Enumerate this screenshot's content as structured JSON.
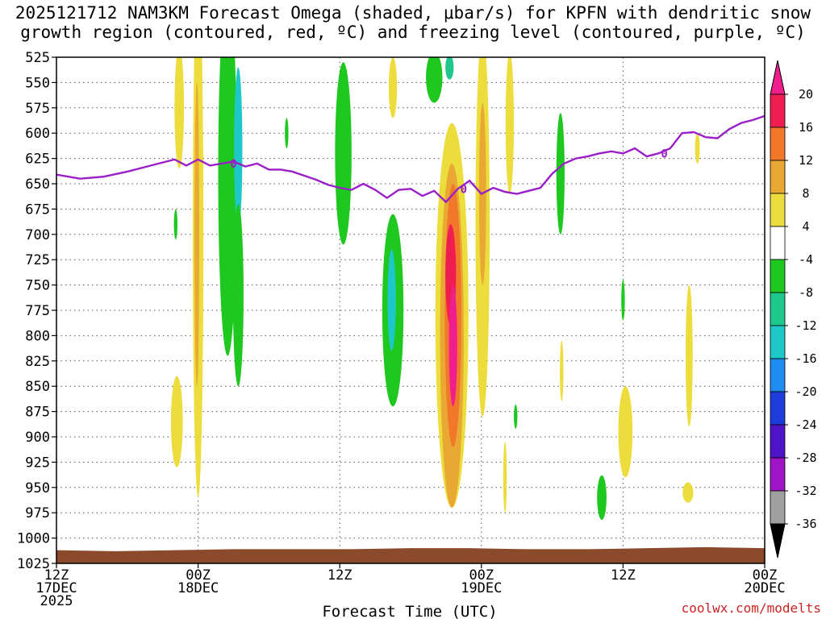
{
  "chart_data": {
    "type": "heatmap",
    "title_line1": "2025121712 NAM3KM Forecast Omega (shaded, μbar/s) for KPFN with dendritic snow",
    "title_line2": "growth region (contoured, red, ºC) and freezing level (contoured, purple, ºC)",
    "xlabel": "Forecast Time (UTC)",
    "credit": "coolwx.com/modelts",
    "x_range_hours": [
      0,
      60
    ],
    "y_range_mb": [
      1025,
      525
    ],
    "x_ticks": [
      {
        "hour": 0,
        "line1": "12Z",
        "line2": "17DEC",
        "line3": "2025"
      },
      {
        "hour": 12,
        "line1": "00Z",
        "line2": "18DEC",
        "line3": ""
      },
      {
        "hour": 24,
        "line1": "12Z",
        "line2": "",
        "line3": ""
      },
      {
        "hour": 36,
        "line1": "00Z",
        "line2": "19DEC",
        "line3": ""
      },
      {
        "hour": 48,
        "line1": "12Z",
        "line2": "",
        "line3": ""
      },
      {
        "hour": 60,
        "line1": "00Z",
        "line2": "20DEC",
        "line3": ""
      }
    ],
    "y_ticks": [
      "525",
      "550",
      "575",
      "600",
      "625",
      "650",
      "675",
      "700",
      "725",
      "750",
      "775",
      "800",
      "825",
      "850",
      "875",
      "900",
      "925",
      "950",
      "975",
      "1000",
      "1025"
    ],
    "colorbar": {
      "labels": [
        "20",
        "16",
        "12",
        "8",
        "4",
        "-4",
        "-8",
        "-12",
        "-16",
        "-20",
        "-24",
        "-28",
        "-32",
        "-36"
      ],
      "bands": [
        {
          "from": 16,
          "to": 20,
          "color": "#f01e50"
        },
        {
          "from": 12,
          "to": 16,
          "color": "#f07828"
        },
        {
          "from": 8,
          "to": 12,
          "color": "#e8a832"
        },
        {
          "from": 4,
          "to": 8,
          "color": "#ecdc3c"
        },
        {
          "from": -4,
          "to": 4,
          "color": "#ffffff"
        },
        {
          "from": -8,
          "to": -4,
          "color": "#1ec81e"
        },
        {
          "from": -12,
          "to": -8,
          "color": "#1ec88c"
        },
        {
          "from": -16,
          "to": -12,
          "color": "#1ec8c8"
        },
        {
          "from": -20,
          "to": -16,
          "color": "#1e8cf0"
        },
        {
          "from": -24,
          "to": -20,
          "color": "#1e3cdc"
        },
        {
          "from": -28,
          "to": -24,
          "color": "#5014c8"
        },
        {
          "from": -32,
          "to": -28,
          "color": "#a014c8"
        },
        {
          "from": -36,
          "to": -32,
          "color": "#a0a0a0"
        }
      ],
      "top_arrow_color": "#f01e8c",
      "bottom_arrow_color": "#000000"
    },
    "omega_areas": [
      {
        "name": "omega-area-18dec-00z-upper",
        "color": "#ecdc3c",
        "hour": 10.4,
        "mb": 575,
        "hwid": 0.4,
        "dmb": 60
      },
      {
        "name": "omega-area-18dec-00z-column",
        "color": "#ecdc3c",
        "hour": 12.0,
        "mb": 700,
        "hwid": 0.45,
        "dmb": 260
      },
      {
        "name": "omega-area-18dec-00z-column-core",
        "color": "#e8a832",
        "hour": 11.9,
        "mb": 700,
        "hwid": 0.2,
        "dmb": 150
      },
      {
        "name": "omega-area-18dec-lowlevel",
        "color": "#ecdc3c",
        "hour": 10.2,
        "mb": 885,
        "hwid": 0.5,
        "dmb": 45
      },
      {
        "name": "omega-area-18dec-03z-sink",
        "color": "#1ec81e",
        "hour": 14.5,
        "mb": 640,
        "hwid": 0.8,
        "dmb": 180
      },
      {
        "name": "omega-area-18dec-03z-sink-core",
        "color": "#1ec8c8",
        "hour": 15.4,
        "mb": 615,
        "hwid": 0.35,
        "dmb": 80
      },
      {
        "name": "omega-area-18dec-04z-sink-low",
        "color": "#1ec81e",
        "hour": 15.4,
        "mb": 760,
        "hwid": 0.45,
        "dmb": 90
      },
      {
        "name": "omega-area-18dec-small",
        "color": "#1ec81e",
        "hour": 10.1,
        "mb": 690,
        "hwid": 0.15,
        "dmb": 15
      },
      {
        "name": "omega-area-18dec-07z",
        "color": "#1ec81e",
        "hour": 19.5,
        "mb": 600,
        "hwid": 0.15,
        "dmb": 15
      },
      {
        "name": "omega-area-18dec-12z-sink",
        "color": "#1ec81e",
        "hour": 24.3,
        "mb": 620,
        "hwid": 0.7,
        "dmb": 90
      },
      {
        "name": "omega-area-18dec-14z-upper",
        "color": "#ecdc3c",
        "hour": 28.5,
        "mb": 555,
        "hwid": 0.35,
        "dmb": 30
      },
      {
        "name": "omega-area-18dec-16z-upper",
        "color": "#1ec81e",
        "hour": 32.0,
        "mb": 545,
        "hwid": 0.7,
        "dmb": 25
      },
      {
        "name": "omega-area-18dec-17z-upper-core",
        "color": "#1ec88c",
        "hour": 33.3,
        "mb": 535,
        "hwid": 0.35,
        "dmb": 12
      },
      {
        "name": "omega-area-18dec-15z-sink",
        "color": "#1ec81e",
        "hour": 28.5,
        "mb": 775,
        "hwid": 0.9,
        "dmb": 95
      },
      {
        "name": "omega-area-18dec-15z-sink-core",
        "color": "#1ec8c8",
        "hour": 28.4,
        "mb": 765,
        "hwid": 0.35,
        "dmb": 50
      },
      {
        "name": "omega-area-18dec-21z-ascent",
        "color": "#ecdc3c",
        "hour": 33.5,
        "mb": 780,
        "hwid": 1.4,
        "dmb": 190
      },
      {
        "name": "omega-area-18dec-21z-ascent-mid",
        "color": "#e8a832",
        "hour": 33.5,
        "mb": 800,
        "hwid": 1.0,
        "dmb": 170
      },
      {
        "name": "omega-area-18dec-21z-ascent-core",
        "color": "#f07828",
        "hour": 33.6,
        "mb": 780,
        "hwid": 0.7,
        "dmb": 130
      },
      {
        "name": "omega-area-18dec-21z-ascent-max",
        "color": "#f01e50",
        "hour": 33.4,
        "mb": 740,
        "hwid": 0.45,
        "dmb": 50
      },
      {
        "name": "omega-area-18dec-21z-ascent-max-low",
        "color": "#f01e8c",
        "hour": 33.6,
        "mb": 810,
        "hwid": 0.35,
        "dmb": 60
      },
      {
        "name": "omega-area-19dec-00z-column",
        "color": "#ecdc3c",
        "hour": 36.1,
        "mb": 690,
        "hwid": 0.6,
        "dmb": 190
      },
      {
        "name": "omega-area-19dec-00z-column-core",
        "color": "#e8a832",
        "hour": 36.1,
        "mb": 660,
        "hwid": 0.3,
        "dmb": 90
      },
      {
        "name": "omega-area-19dec-00z-upper",
        "color": "#ecdc3c",
        "hour": 38.4,
        "mb": 590,
        "hwid": 0.35,
        "dmb": 70
      },
      {
        "name": "omega-area-19dec-07z-sink",
        "color": "#1ec81e",
        "hour": 42.7,
        "mb": 640,
        "hwid": 0.35,
        "dmb": 60
      },
      {
        "name": "omega-area-19dec-12z-low",
        "color": "#1ec81e",
        "hour": 46.2,
        "mb": 960,
        "hwid": 0.4,
        "dmb": 22
      },
      {
        "name": "omega-area-19dec-12z-low-asc",
        "color": "#ecdc3c",
        "hour": 48.2,
        "mb": 895,
        "hwid": 0.6,
        "dmb": 45
      },
      {
        "name": "omega-area-19dec-18z-asc",
        "color": "#ecdc3c",
        "hour": 53.6,
        "mb": 820,
        "hwid": 0.3,
        "dmb": 70
      },
      {
        "name": "omega-area-19dec-18z-low",
        "color": "#ecdc3c",
        "hour": 53.5,
        "mb": 955,
        "hwid": 0.45,
        "dmb": 10
      },
      {
        "name": "omega-area-19dec-20z-upper",
        "color": "#ecdc3c",
        "hour": 54.3,
        "mb": 615,
        "hwid": 0.2,
        "dmb": 15
      },
      {
        "name": "omega-area-19dec-06z-low",
        "color": "#1ec81e",
        "hour": 38.9,
        "mb": 880,
        "hwid": 0.15,
        "dmb": 12
      },
      {
        "name": "omega-area-19dec-03z-low",
        "color": "#ecdc3c",
        "hour": 38.0,
        "mb": 940,
        "hwid": 0.15,
        "dmb": 35
      },
      {
        "name": "omega-area-19dec-08z-low",
        "color": "#ecdc3c",
        "hour": 42.8,
        "mb": 835,
        "hwid": 0.15,
        "dmb": 30
      },
      {
        "name": "omega-area-19dec-14z-small",
        "color": "#1ec81e",
        "hour": 48.0,
        "mb": 765,
        "hwid": 0.15,
        "dmb": 20
      }
    ],
    "freezing_level": {
      "label": "0",
      "color": "#9b1fc8",
      "hours": [
        0,
        2,
        4,
        6,
        8,
        10,
        11,
        12,
        13,
        14,
        15,
        16,
        17,
        18,
        19,
        20,
        21,
        22,
        23,
        24,
        25,
        26,
        27,
        28,
        29,
        30,
        31,
        32,
        33,
        34,
        35,
        36,
        37,
        38,
        39,
        40,
        41,
        42,
        43,
        44,
        45,
        46,
        47,
        48,
        49,
        50,
        51,
        52,
        53,
        54,
        55,
        56,
        57,
        58,
        59,
        60
      ],
      "mb": [
        641,
        645,
        643,
        638,
        632,
        626,
        632,
        626,
        632,
        630,
        628,
        633,
        630,
        636,
        636,
        638,
        642,
        646,
        651,
        654,
        656,
        650,
        656,
        664,
        656,
        655,
        662,
        657,
        668,
        655,
        647,
        660,
        654,
        658,
        660,
        657,
        654,
        640,
        630,
        625,
        623,
        620,
        618,
        620,
        615,
        623,
        620,
        615,
        600,
        599,
        604,
        605,
        596,
        590,
        587,
        583
      ]
    },
    "dgz_contours": {
      "color": "#cc1e1e",
      "note": "red dendritic growth region contours"
    }
  }
}
